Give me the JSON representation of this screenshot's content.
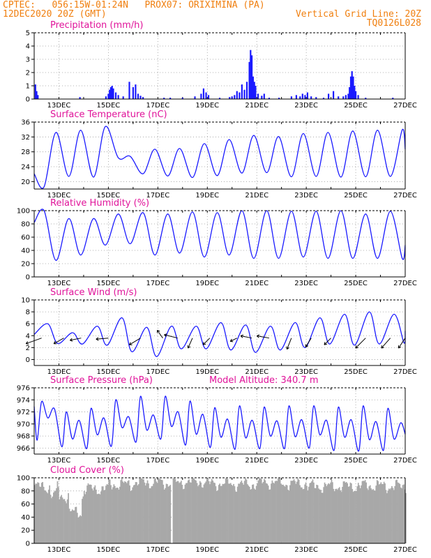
{
  "header": {
    "line1_left": "CPTEC:   056:15W-01:24N   PROX07: ORIXIMINA (PA)",
    "line2_left": "12DEC2020 20Z (GMT)",
    "line2_right": "Vertical Grid Line: 20Z",
    "line3_right": "TQ0126L028"
  },
  "x_axis": {
    "labels": [
      "13DEC",
      "15DEC",
      "17DEC",
      "19DEC",
      "21DEC",
      "23DEC",
      "25DEC",
      "27DEC"
    ],
    "days_from_start": [
      1,
      3,
      5,
      7,
      9,
      11,
      13,
      15
    ]
  },
  "colors": {
    "series": "#1a1aff",
    "header": "#f07f0f",
    "title": "#e0139a",
    "cloud": "#a8a8a8",
    "wind_arrow": "#000000"
  },
  "chart_data": [
    {
      "type": "bar",
      "title": "Precipitation (mm/h)",
      "ylim": [
        0,
        5
      ],
      "yticks": [
        0,
        1,
        2,
        3,
        4,
        5
      ],
      "x_unit": "day",
      "points": [
        [
          0.05,
          1.1
        ],
        [
          0.1,
          0.6
        ],
        [
          0.15,
          0.3
        ],
        [
          1.85,
          0.15
        ],
        [
          2.9,
          0.2
        ],
        [
          3.0,
          0.4
        ],
        [
          3.05,
          0.7
        ],
        [
          3.1,
          0.9
        ],
        [
          3.15,
          1.0
        ],
        [
          3.2,
          0.8
        ],
        [
          3.3,
          0.5
        ],
        [
          3.4,
          0.3
        ],
        [
          3.6,
          0.2
        ],
        [
          3.85,
          1.3
        ],
        [
          4.0,
          0.9
        ],
        [
          4.1,
          1.1
        ],
        [
          4.2,
          0.4
        ],
        [
          4.3,
          0.25
        ],
        [
          4.4,
          0.15
        ],
        [
          5.25,
          0.1
        ],
        [
          5.5,
          0.1
        ],
        [
          6.0,
          0.1
        ],
        [
          6.5,
          0.2
        ],
        [
          6.75,
          0.4
        ],
        [
          6.85,
          0.8
        ],
        [
          6.95,
          0.5
        ],
        [
          7.05,
          0.3
        ],
        [
          7.5,
          0.1
        ],
        [
          7.9,
          0.15
        ],
        [
          8.0,
          0.2
        ],
        [
          8.1,
          0.3
        ],
        [
          8.2,
          0.6
        ],
        [
          8.3,
          0.5
        ],
        [
          8.4,
          1.1
        ],
        [
          8.5,
          0.7
        ],
        [
          8.6,
          1.3
        ],
        [
          8.7,
          2.8
        ],
        [
          8.75,
          3.7
        ],
        [
          8.8,
          3.3
        ],
        [
          8.85,
          1.7
        ],
        [
          8.9,
          1.3
        ],
        [
          8.95,
          1.0
        ],
        [
          9.05,
          0.4
        ],
        [
          9.2,
          0.25
        ],
        [
          9.3,
          0.4
        ],
        [
          9.5,
          0.1
        ],
        [
          9.9,
          0.1
        ],
        [
          10.4,
          0.2
        ],
        [
          10.6,
          0.3
        ],
        [
          10.75,
          0.2
        ],
        [
          10.85,
          0.4
        ],
        [
          10.95,
          0.3
        ],
        [
          11.05,
          0.5
        ],
        [
          11.2,
          0.2
        ],
        [
          11.4,
          0.15
        ],
        [
          11.7,
          0.1
        ],
        [
          11.9,
          0.4
        ],
        [
          12.1,
          0.6
        ],
        [
          12.3,
          0.2
        ],
        [
          12.5,
          0.2
        ],
        [
          12.6,
          0.3
        ],
        [
          12.7,
          0.4
        ],
        [
          12.75,
          0.9
        ],
        [
          12.8,
          1.7
        ],
        [
          12.85,
          2.1
        ],
        [
          12.9,
          1.7
        ],
        [
          12.95,
          1.0
        ],
        [
          13.0,
          0.6
        ],
        [
          13.1,
          0.3
        ],
        [
          13.4,
          0.1
        ],
        [
          14.5,
          0.1
        ]
      ]
    },
    {
      "type": "line",
      "title": "Surface Temperature (nC)",
      "ylim": [
        18,
        36
      ],
      "yticks": [
        20,
        24,
        28,
        32,
        36
      ],
      "x_unit": "day",
      "daily_max": [
        33.2,
        33.8,
        34.8,
        26.8,
        28.7,
        28.9,
        30.2,
        31.3,
        32.4,
        32.1,
        32.9,
        33.2,
        33.6,
        33.8,
        33.9
      ],
      "daily_min": [
        18.6,
        21.4,
        21.2,
        26.4,
        22.1,
        21.5,
        21.1,
        21.6,
        22.3,
        22.4,
        21.3,
        21.4,
        21.2,
        21.3,
        21.4
      ],
      "first_point": 22.1,
      "last_point": 28.7
    },
    {
      "type": "line",
      "title": "Relative Humidity (%)",
      "ylim": [
        0,
        100
      ],
      "yticks": [
        0,
        20,
        40,
        60,
        80,
        100
      ],
      "x_unit": "day",
      "daily_max": [
        100,
        88,
        88,
        95,
        97,
        95,
        98,
        97,
        100,
        100,
        99,
        99,
        100,
        95,
        99
      ],
      "daily_min": [
        25,
        33,
        48,
        50,
        33,
        36,
        30,
        33,
        28,
        28,
        30,
        28,
        28,
        28,
        28
      ],
      "first_point": 82,
      "last_point": 48
    },
    {
      "type": "line",
      "title": "Surface Wind (m/s)",
      "ylim": [
        -1,
        10
      ],
      "yticks": [
        0,
        2,
        4,
        6,
        8,
        10
      ],
      "x_unit": "day",
      "daily_max": [
        6.0,
        4.5,
        5.6,
        7.0,
        5.4,
        5.6,
        5.6,
        6.2,
        5.8,
        5.6,
        6.2,
        7.0,
        7.6,
        8.0,
        7.6
      ],
      "daily_min": [
        2.7,
        2.6,
        2.4,
        1.3,
        0.5,
        1.8,
        1.8,
        1.6,
        1.2,
        1.6,
        2.0,
        2.6,
        2.4,
        2.6,
        2.8
      ],
      "first_point": 4.2,
      "last_point": 4.8,
      "vectors": [
        {
          "day": 0.3,
          "u": -1.4,
          "v": -0.5
        },
        {
          "day": 1.2,
          "u": -0.9,
          "v": -0.5
        },
        {
          "day": 1.9,
          "u": -1.0,
          "v": -0.2
        },
        {
          "day": 3.0,
          "u": -1.1,
          "v": -0.1
        },
        {
          "day": 4.3,
          "u": -1.0,
          "v": -0.6
        },
        {
          "day": 5.2,
          "u": -0.5,
          "v": 0.7
        },
        {
          "day": 5.8,
          "u": -1.2,
          "v": 0.3
        },
        {
          "day": 6.4,
          "u": -0.4,
          "v": -0.9
        },
        {
          "day": 7.1,
          "u": -0.6,
          "v": -0.6
        },
        {
          "day": 8.2,
          "u": -0.6,
          "v": -0.3
        },
        {
          "day": 8.8,
          "u": -1.0,
          "v": 0.2
        },
        {
          "day": 9.5,
          "u": -1.1,
          "v": 0.2
        },
        {
          "day": 10.4,
          "u": -0.4,
          "v": -1.0
        },
        {
          "day": 11.2,
          "u": -0.5,
          "v": -0.8
        },
        {
          "day": 12.0,
          "u": -0.6,
          "v": -0.6
        },
        {
          "day": 13.4,
          "u": -0.9,
          "v": -0.9
        },
        {
          "day": 14.4,
          "u": -0.8,
          "v": -0.9
        },
        {
          "day": 15.0,
          "u": -0.6,
          "v": -0.9
        }
      ]
    },
    {
      "type": "line",
      "title": "Surface Pressure (hPa)",
      "annotation": "Model Altitude: 340.7  m",
      "ylim": [
        965,
        976
      ],
      "yticks": [
        966,
        968,
        970,
        972,
        974,
        976
      ],
      "x_unit": "day",
      "first_point": 972.9,
      "daily_peak1": [
        973.7,
        972.0,
        972.6,
        974.0,
        974.6,
        974.6,
        973.8,
        972.7,
        973.0,
        972.8,
        973.0,
        973.0,
        972.8,
        973.0,
        972.6
      ],
      "daily_trough1": [
        971.0,
        967.5,
        968.2,
        969.4,
        969.0,
        969.6,
        968.3,
        967.8,
        967.7,
        968.0,
        967.9,
        968.2,
        967.8,
        967.4,
        967.5
      ],
      "daily_peak2": [
        972.5,
        970.6,
        971.0,
        971.2,
        971.5,
        972.0,
        971.6,
        970.8,
        970.6,
        970.5,
        970.7,
        970.6,
        970.7,
        970.4,
        970.2
      ],
      "daily_trough2": [
        967.3,
        966.2,
        965.9,
        966.3,
        967.0,
        967.5,
        966.5,
        966.1,
        965.8,
        965.9,
        965.9,
        966.0,
        965.6,
        965.5,
        965.6
      ],
      "last_point": 968.3
    },
    {
      "type": "bar",
      "title": "Cloud Cover (%)",
      "ylim": [
        0,
        100
      ],
      "yticks": [
        0,
        20,
        40,
        60,
        80,
        100
      ],
      "x_unit": "day",
      "daily_mean": [
        86,
        72,
        83,
        90,
        93,
        92,
        94,
        91,
        90,
        93,
        91,
        87,
        87,
        88,
        87
      ],
      "gap_day": 5.55
    }
  ]
}
